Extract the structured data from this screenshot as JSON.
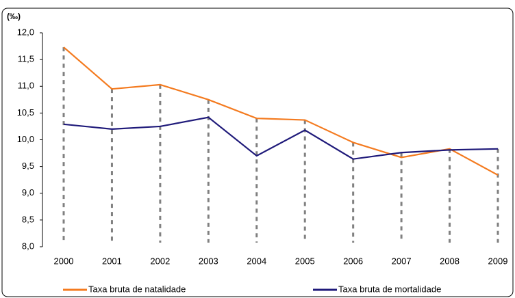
{
  "chart_data": {
    "type": "line",
    "y_label": "(‰)",
    "categories": [
      "2000",
      "2001",
      "2002",
      "2003",
      "2004",
      "2005",
      "2006",
      "2007",
      "2008",
      "2009"
    ],
    "series": [
      {
        "name": "Taxa bruta de natalidade",
        "color": "#f47b20",
        "values": [
          11.73,
          10.95,
          11.03,
          10.75,
          10.4,
          10.37,
          9.95,
          9.67,
          9.83,
          9.34
        ]
      },
      {
        "name": "Taxa bruta de mortalidade",
        "color": "#1f1a7a",
        "values": [
          10.29,
          10.2,
          10.25,
          10.42,
          9.7,
          10.18,
          9.64,
          9.76,
          9.81,
          9.83
        ]
      }
    ],
    "ylim": [
      8.0,
      12.0
    ],
    "yticks": [
      {
        "value": 8.0,
        "label": "8,0"
      },
      {
        "value": 8.5,
        "label": "8,5"
      },
      {
        "value": 9.0,
        "label": "9,0"
      },
      {
        "value": 9.5,
        "label": "9,5"
      },
      {
        "value": 10.0,
        "label": "10,0"
      },
      {
        "value": 10.5,
        "label": "10,5"
      },
      {
        "value": 11.0,
        "label": "11,0"
      },
      {
        "value": 11.5,
        "label": "11,5"
      },
      {
        "value": 12.0,
        "label": "12,0"
      }
    ],
    "drop_lines": true
  }
}
